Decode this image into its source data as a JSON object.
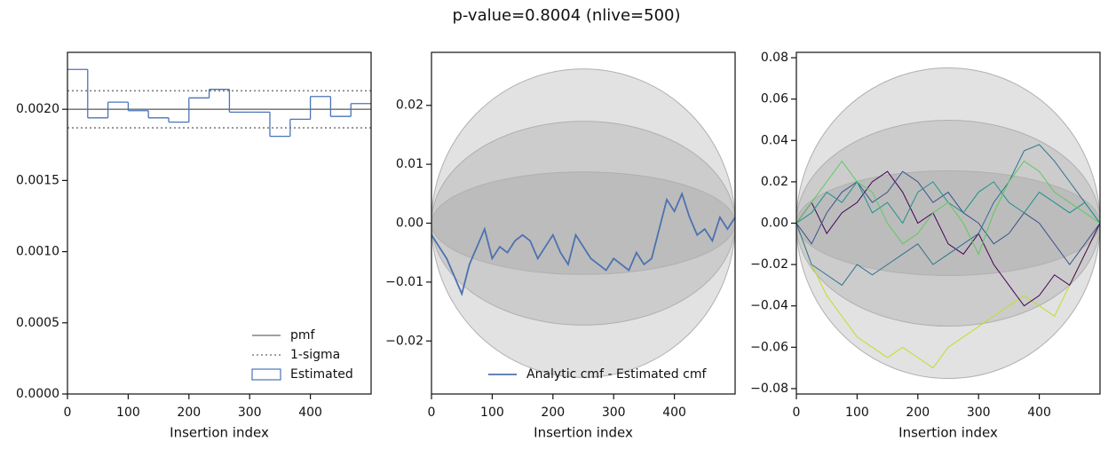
{
  "title": "p-value=0.8004 (nlive=500)",
  "chart_data": [
    {
      "type": "histogram",
      "xlabel": "Insertion index",
      "bins": [
        0,
        33.3,
        66.7,
        100,
        133.3,
        166.7,
        200,
        233.3,
        266.7,
        300,
        333.3,
        366.7,
        400,
        433.3,
        466.7,
        500
      ],
      "counts": [
        0.00228,
        0.00194,
        0.00205,
        0.00199,
        0.00194,
        0.00191,
        0.00208,
        0.00214,
        0.00198,
        0.00198,
        0.00181,
        0.00193,
        0.00209,
        0.00195,
        0.00204
      ],
      "name": "Estimated",
      "color": "#4a74b8",
      "pmf": {
        "name": "pmf",
        "value": 0.002,
        "color": "#808080"
      },
      "sigma": {
        "name": "1-sigma",
        "values": [
          0.00187,
          0.00213
        ],
        "color": "#808080"
      },
      "xlim": [
        0,
        500
      ],
      "xticks": [
        0,
        100,
        200,
        300,
        400
      ],
      "ylim": [
        0,
        0.0024
      ],
      "yticks": [
        {
          "value": 0,
          "label": "0.0000"
        },
        {
          "value": 0.0005,
          "label": "0.0005"
        },
        {
          "value": 0.001,
          "label": "0.0010"
        },
        {
          "value": 0.0015,
          "label": "0.0015"
        },
        {
          "value": 0.002,
          "label": "0.0020"
        }
      ],
      "legend": "lower right"
    },
    {
      "type": "line",
      "xlabel": "Insertion index",
      "x": [
        0,
        12.5,
        25,
        37.5,
        50,
        62.5,
        75,
        87.5,
        100,
        112.5,
        125,
        137.5,
        150,
        162.5,
        175,
        187.5,
        200,
        212.5,
        225,
        237.5,
        250,
        262.5,
        275,
        287.5,
        300,
        312.5,
        325,
        337.5,
        350,
        362.5,
        375,
        387.5,
        400,
        412.5,
        425,
        437.5,
        450,
        462.5,
        475,
        487.5,
        500
      ],
      "series": [
        {
          "name": "Analytic cmf - Estimated cmf",
          "color": "#4c72b0",
          "values": [
            -0.002,
            -0.004,
            -0.006,
            -0.009,
            -0.012,
            -0.007,
            -0.004,
            -0.001,
            -0.006,
            -0.004,
            -0.005,
            -0.003,
            -0.002,
            -0.003,
            -0.006,
            -0.004,
            -0.002,
            -0.005,
            -0.007,
            -0.002,
            -0.004,
            -0.006,
            -0.007,
            -0.008,
            -0.006,
            -0.007,
            -0.008,
            -0.005,
            -0.007,
            -0.006,
            -0.001,
            0.004,
            0.002,
            0.005,
            0.001,
            -0.002,
            -0.001,
            -0.003,
            0.001,
            -0.001,
            0.001
          ]
        }
      ],
      "sigma_bands": [
        0.0087,
        0.0173,
        0.0262
      ],
      "xlim": [
        0,
        500
      ],
      "xticks": [
        0,
        100,
        200,
        300,
        400
      ],
      "ylim": [
        -0.029,
        0.029
      ],
      "yticks": [
        {
          "value": -0.02,
          "label": "−0.02"
        },
        {
          "value": -0.01,
          "label": "−0.01"
        },
        {
          "value": 0,
          "label": "0.00"
        },
        {
          "value": 0.01,
          "label": "0.01"
        },
        {
          "value": 0.02,
          "label": "0.02"
        }
      ],
      "legend": "lower right"
    },
    {
      "type": "line",
      "xlabel": "Insertion index",
      "x": [
        0,
        25,
        50,
        75,
        100,
        125,
        150,
        175,
        200,
        225,
        250,
        275,
        300,
        325,
        350,
        375,
        400,
        425,
        450,
        475,
        500
      ],
      "series": [
        {
          "color": "#bddf26",
          "values": [
            0,
            -0.02,
            -0.035,
            -0.045,
            -0.055,
            -0.06,
            -0.065,
            -0.06,
            -0.065,
            -0.07,
            -0.06,
            -0.055,
            -0.05,
            -0.045,
            -0.04,
            -0.035,
            -0.04,
            -0.045,
            -0.03,
            -0.015,
            0
          ]
        },
        {
          "color": "#440154",
          "values": [
            0,
            0.01,
            -0.005,
            0.005,
            0.01,
            0.02,
            0.025,
            0.015,
            0,
            0.005,
            -0.01,
            -0.015,
            -0.005,
            -0.02,
            -0.03,
            -0.04,
            -0.035,
            -0.025,
            -0.03,
            -0.015,
            0
          ]
        },
        {
          "color": "#3b528b",
          "values": [
            0,
            -0.01,
            0.005,
            0.015,
            0.02,
            0.01,
            0.015,
            0.025,
            0.02,
            0.01,
            0.015,
            0.005,
            0,
            -0.01,
            -0.005,
            0.005,
            0,
            -0.01,
            -0.02,
            -0.01,
            0
          ]
        },
        {
          "color": "#2c728e",
          "values": [
            0,
            -0.02,
            -0.025,
            -0.03,
            -0.02,
            -0.025,
            -0.02,
            -0.015,
            -0.01,
            -0.02,
            -0.015,
            -0.01,
            -0.005,
            0.01,
            0.02,
            0.035,
            0.038,
            0.03,
            0.02,
            0.01,
            0
          ]
        },
        {
          "color": "#21918c",
          "values": [
            0,
            0.005,
            0.015,
            0.01,
            0.02,
            0.005,
            0.01,
            0,
            0.015,
            0.02,
            0.01,
            0.005,
            0.015,
            0.02,
            0.01,
            0.005,
            0.015,
            0.01,
            0.005,
            0.01,
            0
          ]
        },
        {
          "color": "#5ec962",
          "values": [
            0,
            0.01,
            0.02,
            0.03,
            0.02,
            0.015,
            0,
            -0.01,
            -0.005,
            0.005,
            0.01,
            0,
            -0.015,
            0.005,
            0.02,
            0.03,
            0.025,
            0.015,
            0.01,
            0.005,
            0
          ]
        }
      ],
      "sigma_bands": [
        0.0253,
        0.0498,
        0.0751
      ],
      "xlim": [
        0,
        500
      ],
      "xticks": [
        0,
        100,
        200,
        300,
        400
      ],
      "ylim": [
        -0.0826,
        0.0826
      ],
      "yticks": [
        {
          "value": -0.08,
          "label": "−0.08"
        },
        {
          "value": -0.06,
          "label": "−0.06"
        },
        {
          "value": -0.04,
          "label": "−0.04"
        },
        {
          "value": -0.02,
          "label": "−0.02"
        },
        {
          "value": 0,
          "label": "0.00"
        },
        {
          "value": 0.02,
          "label": "0.02"
        },
        {
          "value": 0.04,
          "label": "0.04"
        },
        {
          "value": 0.06,
          "label": "0.06"
        },
        {
          "value": 0.08,
          "label": "0.08"
        }
      ]
    }
  ]
}
